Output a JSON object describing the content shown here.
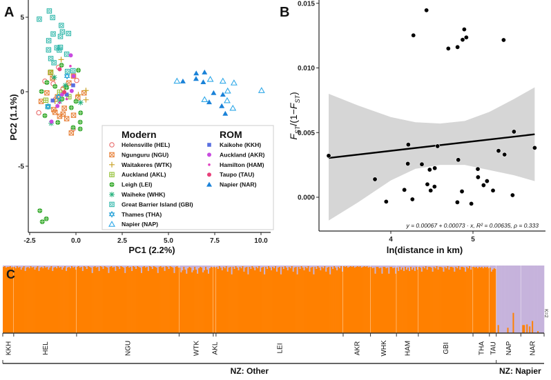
{
  "chart_data": [
    {
      "type": "scatter",
      "panel_label": "A",
      "xlabel": "PC1 (2.2%)",
      "ylabel": "PC2 (1.1%)",
      "xlim": [
        -2.6,
        10.5
      ],
      "ylim": [
        -9.5,
        6.1
      ],
      "xticks": [
        -2.5,
        0.0,
        2.5,
        5.0,
        7.5,
        10.0
      ],
      "xtick_labels": [
        "-2.5",
        "0.0",
        "2.5",
        "5.0",
        "7.5",
        "10.0"
      ],
      "yticks": [
        5,
        0,
        -5
      ],
      "ytick_labels": [
        "5",
        "0",
        "-5"
      ],
      "legend": {
        "position": "bottom-right",
        "groups": [
          {
            "title": "Modern",
            "entries": [
              "HEL",
              "NGU",
              "WTK",
              "AKL",
              "LEI",
              "WHK",
              "GBI",
              "THA",
              "NAP"
            ]
          },
          {
            "title": "ROM",
            "entries": [
              "KKH",
              "AKR",
              "HAM",
              "TAU",
              "NAR"
            ]
          }
        ]
      },
      "series": [
        {
          "code": "HEL",
          "name": "Helensville (HEL)",
          "marker": "circle-open",
          "color": "#e86b6b",
          "points": [
            [
              -2.01,
              -1.41
            ],
            [
              -1.68,
              0.71
            ],
            [
              0.04,
              0.76
            ],
            [
              -1.23,
              0.54
            ],
            [
              -0.94,
              1.64
            ],
            [
              -0.15,
              -2.5
            ],
            [
              -0.7,
              0.2
            ],
            [
              -1.1,
              -0.5
            ]
          ]
        },
        {
          "code": "NGU",
          "name": "Ngunguru (NGU)",
          "marker": "square-x",
          "color": "#e8823a",
          "points": [
            [
              -0.25,
              -2.77
            ],
            [
              -0.5,
              -1.81
            ],
            [
              -1.13,
              -1.38
            ],
            [
              -0.88,
              -1.65
            ],
            [
              0.44,
              -0.08
            ],
            [
              -1.57,
              -0.08
            ],
            [
              -1.88,
              -0.65
            ],
            [
              -1.38,
              1.28
            ],
            [
              -0.13,
              1.05
            ],
            [
              -0.13,
              -1.58
            ],
            [
              -1.0,
              -0.34
            ],
            [
              -0.63,
              -1.11
            ],
            [
              -0.38,
              0.59
            ],
            [
              -1.26,
              0.9
            ],
            [
              -0.7,
              -1.5
            ],
            [
              -1.2,
              -1.2
            ],
            [
              0.1,
              -0.4
            ]
          ]
        },
        {
          "code": "WTK",
          "name": "Waitakeres (WTK)",
          "marker": "plus",
          "color": "#c9a227",
          "points": [
            [
              -0.8,
              2.16
            ],
            [
              0.54,
              0.08
            ],
            [
              0.54,
              -0.54
            ],
            [
              0.13,
              -0.19
            ],
            [
              -1.13,
              -0.65
            ],
            [
              -0.63,
              0.28
            ]
          ]
        },
        {
          "code": "AKL",
          "name": "Auckland (AKL)",
          "marker": "square-plus",
          "color": "#8fbf2f",
          "points": [
            [
              -1.36,
              1.31
            ],
            [
              -1.63,
              -0.57
            ],
            [
              -0.88,
              -0.03
            ],
            [
              -0.38,
              -0.34
            ]
          ]
        },
        {
          "code": "LEI",
          "name": "Leigh (LEI)",
          "marker": "circle-plus",
          "color": "#3aa935",
          "points": [
            [
              -1.95,
              -7.99
            ],
            [
              -1.82,
              -8.73
            ],
            [
              -1.6,
              -8.53
            ],
            [
              -0.78,
              1.78
            ],
            [
              0.13,
              1.44
            ],
            [
              -1.57,
              0.62
            ],
            [
              -1.86,
              0.02
            ],
            [
              -1.68,
              -1.61
            ],
            [
              -0.98,
              -2.06
            ],
            [
              0.25,
              -1.42
            ],
            [
              0.23,
              -2.04
            ],
            [
              0.23,
              -2.5
            ],
            [
              -0.15,
              -2.4
            ],
            [
              -0.25,
              -1.07
            ],
            [
              -1.13,
              0.36
            ],
            [
              -0.5,
              0.28
            ],
            [
              -0.75,
              -0.49
            ],
            [
              0.0,
              -0.65
            ]
          ]
        },
        {
          "code": "WHK",
          "name": "Waiheke (WHK)",
          "marker": "asterisk",
          "color": "#22b07a",
          "points": [
            [
              -1.34,
              -2.12
            ],
            [
              0.25,
              -0.73
            ],
            [
              -1.17,
              0.96
            ],
            [
              -0.57,
              0.43
            ],
            [
              -0.88,
              -0.65
            ]
          ]
        },
        {
          "code": "GBI",
          "name": "Great Barrier Island (GBI)",
          "marker": "square-circle",
          "color": "#2ab5a8",
          "points": [
            [
              -1.98,
              4.87
            ],
            [
              -1.44,
              5.42
            ],
            [
              -1.26,
              4.98
            ],
            [
              -0.79,
              4.45
            ],
            [
              -0.73,
              4.02
            ],
            [
              -0.4,
              3.91
            ],
            [
              -1.23,
              3.88
            ],
            [
              -0.84,
              3.71
            ],
            [
              -1.47,
              3.43
            ],
            [
              -1.03,
              2.95
            ],
            [
              -0.84,
              2.98
            ],
            [
              -1.48,
              2.81
            ],
            [
              -0.9,
              2.8
            ],
            [
              -0.5,
              2.52
            ],
            [
              -1.36,
              2.23
            ],
            [
              -1.19,
              1.95
            ],
            [
              -0.46,
              1.36
            ],
            [
              -0.16,
              1.41
            ],
            [
              -1.51,
              -1.0
            ]
          ]
        },
        {
          "code": "THA",
          "name": "Thames (THA)",
          "marker": "star-david",
          "color": "#29a3d8",
          "points": [
            [
              -1.51,
              -0.99
            ],
            [
              -0.48,
              1.05
            ],
            [
              -0.94,
              -0.34
            ]
          ]
        },
        {
          "code": "NAP",
          "name": "Napier (NAP)",
          "marker": "triangle-open",
          "color": "#2fa8e8",
          "points": [
            [
              5.46,
              0.71
            ],
            [
              7.26,
              0.83
            ],
            [
              7.94,
              0.71
            ],
            [
              8.54,
              0.59
            ],
            [
              8.2,
              0.05
            ],
            [
              10.03,
              0.08
            ],
            [
              6.95,
              -0.53
            ],
            [
              8.17,
              -0.6
            ],
            [
              8.48,
              -1.11
            ]
          ]
        },
        {
          "code": "KKH",
          "name": "Kaikohe (KKH)",
          "marker": "square-filled",
          "color": "#5a6fe0",
          "points": [
            [
              -0.15,
              0.43
            ],
            [
              -1.26,
              -0.59
            ],
            [
              -0.5,
              -0.19
            ]
          ]
        },
        {
          "code": "AKR",
          "name": "Auckland (AKR)",
          "marker": "circle-filled",
          "color": "#c84be0",
          "points": [
            [
              -0.28,
              2.44
            ],
            [
              -1.32,
              -2.01
            ],
            [
              -0.75,
              -0.19
            ],
            [
              -0.23,
              0.05
            ],
            [
              -1.0,
              -0.96
            ],
            [
              -0.13,
              1.05
            ]
          ]
        },
        {
          "code": "HAM",
          "name": "Hamilton (HAM)",
          "marker": "dot",
          "color": "#e040c0",
          "points": [
            [
              -0.3,
              1.72
            ],
            [
              -0.88,
              -0.73
            ],
            [
              -0.5,
              -0.49
            ]
          ]
        },
        {
          "code": "TAU",
          "name": "Taupo (TAU)",
          "marker": "circle-filled",
          "color": "#e8407a",
          "points": [
            [
              -0.88,
              1.51
            ],
            [
              -0.63,
              -0.03
            ]
          ]
        },
        {
          "code": "NAR",
          "name": "Napier (NAR)",
          "marker": "triangle-filled",
          "color": "#1a82d8",
          "points": [
            [
              5.78,
              0.7
            ],
            [
              6.5,
              1.24
            ],
            [
              6.95,
              1.3
            ],
            [
              6.49,
              0.87
            ],
            [
              6.88,
              0.65
            ],
            [
              7.44,
              -0.08
            ],
            [
              7.94,
              -0.19
            ],
            [
              7.2,
              -0.7
            ],
            [
              7.88,
              -0.96
            ],
            [
              8.07,
              -1.47
            ]
          ]
        }
      ]
    },
    {
      "type": "scatter",
      "panel_label": "B",
      "xlabel": "ln(distance in km)",
      "ylabel_parts": [
        "F",
        "ST",
        "/(1−",
        "F",
        "ST",
        ")"
      ],
      "xlim": [
        3.2,
        5.94
      ],
      "ylim": [
        -0.00262,
        0.0153
      ],
      "xticks": [
        4,
        5
      ],
      "xtick_labels": [
        "4",
        "5"
      ],
      "yticks": [
        0.015,
        0.01,
        0.005,
        0.0
      ],
      "ytick_labels": [
        "0.015",
        "0.010",
        "0.005",
        "0.000"
      ],
      "annotation": "y = 0.00067 + 0.00073 · x,  R² = 0.00635,  ρ = 0.333",
      "regression": {
        "intercept": 0.00067,
        "slope": 0.00073,
        "x_range": [
          3.244,
          5.751
        ]
      },
      "ci_band": {
        "x": [
          3.244,
          3.6,
          4.0,
          4.3,
          4.6,
          4.9,
          5.2,
          5.5,
          5.751
        ],
        "upper": [
          0.008,
          0.0071,
          0.0062,
          0.0058,
          0.0057,
          0.0059,
          0.0066,
          0.0076,
          0.0085
        ],
        "lower": [
          -0.0018,
          -0.0004,
          0.0013,
          0.0022,
          0.0025,
          0.0025,
          0.0021,
          0.0017,
          0.00125
        ]
      },
      "points": [
        [
          3.244,
          0.00321
        ],
        [
          4.434,
          0.01446
        ],
        [
          4.275,
          0.01252
        ],
        [
          4.7,
          0.0115
        ],
        [
          4.812,
          0.01161
        ],
        [
          4.894,
          0.01298
        ],
        [
          4.874,
          0.01218
        ],
        [
          4.919,
          0.01236
        ],
        [
          5.373,
          0.01216
        ],
        [
          5.499,
          0.00507
        ],
        [
          5.751,
          0.00382
        ],
        [
          4.213,
          0.00407
        ],
        [
          4.569,
          0.00395
        ],
        [
          5.311,
          0.00359
        ],
        [
          5.384,
          0.0033
        ],
        [
          4.821,
          0.00289
        ],
        [
          4.207,
          0.00259
        ],
        [
          4.378,
          0.00255
        ],
        [
          4.535,
          0.00225
        ],
        [
          4.473,
          0.00213
        ],
        [
          5.059,
          0.00218
        ],
        [
          3.807,
          0.00139
        ],
        [
          5.062,
          0.00155
        ],
        [
          5.171,
          0.00125
        ],
        [
          5.129,
          0.00093
        ],
        [
          4.165,
          0.00057
        ],
        [
          4.445,
          0.001
        ],
        [
          4.532,
          0.00082
        ],
        [
          4.485,
          0.00052
        ],
        [
          4.866,
          0.00045
        ],
        [
          5.244,
          0.00052
        ],
        [
          5.482,
          0.00016
        ],
        [
          3.944,
          -0.00034
        ],
        [
          4.263,
          -0.00016
        ],
        [
          4.81,
          -0.00039
        ],
        [
          4.98,
          -0.0005
        ]
      ]
    },
    {
      "type": "bar",
      "subtype": "stacked-admixture",
      "panel_label": "C",
      "k_label": "K=2",
      "colors": {
        "cluster1": "#ff8000",
        "cluster2": "#c6b3dc"
      },
      "note": "values = cluster2 (lavender) fraction per individual, cycled to n",
      "groups": [
        {
          "code": "KKH",
          "n": 8,
          "values": [
            0.02,
            0.01,
            0.03,
            0.02
          ]
        },
        {
          "code": "HEL",
          "n": 46,
          "values": [
            0.02,
            0.04,
            0.01,
            0.03,
            0.02,
            0.06,
            0.03,
            0.01,
            0.08,
            0.03
          ]
        },
        {
          "code": "NGU",
          "n": 75,
          "values": [
            0.02,
            0.01,
            0.03,
            0.02,
            0.08,
            0.01,
            0.02,
            0.05,
            0.01,
            0.02,
            0.03,
            0.11
          ]
        },
        {
          "code": "WTK",
          "n": 25,
          "values": [
            0.03,
            0.1,
            0.07,
            0.02,
            0.06,
            0.12,
            0.04,
            0.02
          ]
        },
        {
          "code": "AKL",
          "n": 2,
          "values": [
            0.02,
            0.03
          ]
        },
        {
          "code": "LEI",
          "n": 93,
          "values": [
            0.02,
            0.05,
            0.01,
            0.03,
            0.07,
            0.02,
            0.04,
            0.01,
            0.09,
            0.03,
            0.02,
            0.13
          ]
        },
        {
          "code": "AKR",
          "n": 20,
          "values": [
            0.01,
            0.02,
            0.01,
            0.03,
            0.02
          ]
        },
        {
          "code": "WHK",
          "n": 19,
          "values": [
            0.02,
            0.04,
            0.03,
            0.12,
            0.02
          ]
        },
        {
          "code": "HAM",
          "n": 16,
          "values": [
            0.03,
            0.08,
            0.02,
            0.06
          ]
        },
        {
          "code": "GBI",
          "n": 40,
          "values": [
            0.02,
            0.03,
            0.09,
            0.02,
            0.04,
            0.01,
            0.06,
            0.02
          ]
        },
        {
          "code": "THA",
          "n": 12,
          "values": [
            0.02,
            0.03,
            0.02,
            0.04
          ]
        },
        {
          "code": "TAU",
          "n": 5,
          "values": [
            0.03,
            0.09,
            0.06,
            0.04,
            0.05
          ]
        },
        {
          "code": "NAP",
          "n": 18,
          "values": [
            1,
            0.88,
            1,
            1,
            1,
            1,
            1,
            1,
            0.92,
            1,
            1,
            1,
            0.7,
            1,
            1,
            1,
            1,
            1
          ]
        },
        {
          "code": "NAR",
          "n": 17,
          "values": [
            1,
            0.88,
            0.88,
            1,
            0.87,
            1,
            0.9,
            1,
            0.82,
            1,
            1,
            1,
            0.97,
            1,
            1,
            1,
            1
          ]
        }
      ],
      "regions": [
        {
          "label": "NZ: Other",
          "groups": [
            "KKH",
            "HEL",
            "NGU",
            "WTK",
            "AKL",
            "LEI",
            "AKR",
            "WHK",
            "HAM",
            "GBI",
            "THA",
            "TAU"
          ]
        },
        {
          "label": "NZ: Napier",
          "groups": [
            "NAP",
            "NAR"
          ]
        }
      ]
    }
  ]
}
